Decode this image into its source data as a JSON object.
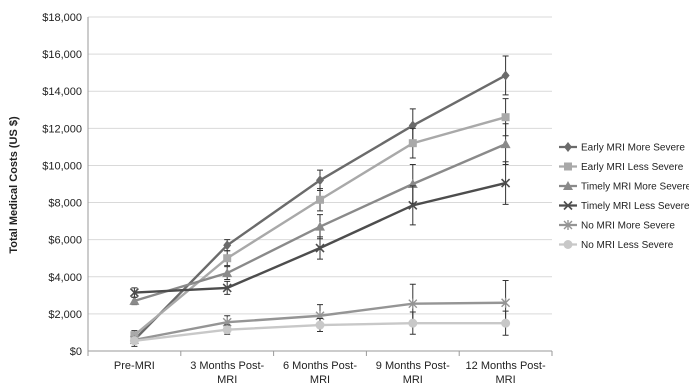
{
  "chart_data": {
    "type": "line",
    "ylabel": "Total Medical Costs (US $)",
    "ylim": [
      0,
      18000
    ],
    "y_ticks": [
      "$0",
      "$2,000",
      "$4,000",
      "$6,000",
      "$8,000",
      "$10,000",
      "$12,000",
      "$14,000",
      "$16,000",
      "$18,000"
    ],
    "categories": [
      [
        "Pre-MRI"
      ],
      [
        "3 Months Post-",
        "MRI"
      ],
      [
        "6 Months Post-",
        "MRI"
      ],
      [
        "9 Months Post-",
        "MRI"
      ],
      [
        "12 Months Post-",
        "MRI"
      ]
    ],
    "grid": true,
    "legend_position": "right",
    "series": [
      {
        "name": "Early MRI More Severe",
        "marker": "diamond",
        "color": "#6b6b6b",
        "values": [
          600,
          5700,
          9200,
          12150,
          14850
        ],
        "err": [
          350,
          300,
          550,
          900,
          1050
        ]
      },
      {
        "name": "Early MRI Less Severe",
        "marker": "square",
        "color": "#a9a9a9",
        "values": [
          850,
          5000,
          8150,
          11200,
          12600
        ],
        "err": [
          250,
          400,
          600,
          800,
          1000
        ]
      },
      {
        "name": "Timely MRI More Severe",
        "marker": "triangle",
        "color": "#8a8a8a",
        "values": [
          2700,
          4200,
          6700,
          9000,
          11150
        ],
        "err": [
          200,
          350,
          650,
          1050,
          1100
        ]
      },
      {
        "name": "Timely MRI Less Severe",
        "marker": "x",
        "color": "#4d4d4d",
        "values": [
          3150,
          3400,
          5550,
          7850,
          9050
        ],
        "err": [
          250,
          350,
          600,
          1050,
          1150
        ]
      },
      {
        "name": "No MRI More Severe",
        "marker": "star",
        "color": "#959595",
        "values": [
          600,
          1550,
          1900,
          2550,
          2600
        ],
        "err": [
          150,
          350,
          600,
          1050,
          1200
        ]
      },
      {
        "name": "No MRI Less Severe",
        "marker": "circle",
        "color": "#c8c8c8",
        "values": [
          550,
          1150,
          1400,
          1500,
          1500
        ],
        "err": [
          100,
          250,
          350,
          600,
          650
        ]
      }
    ]
  }
}
